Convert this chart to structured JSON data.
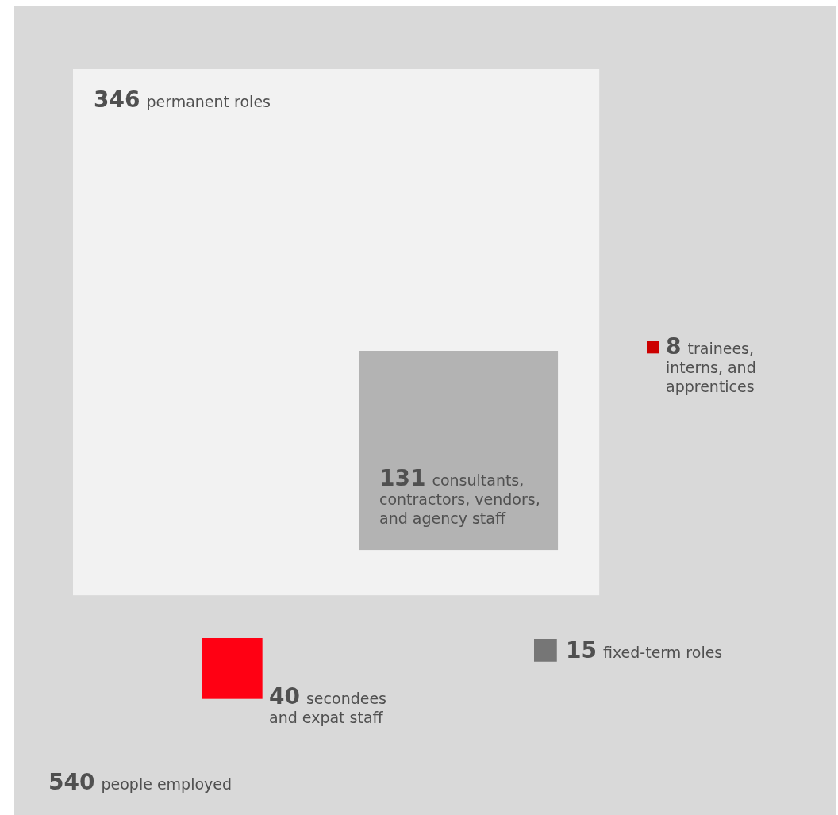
{
  "chart_data": {
    "type": "other",
    "categories": [
      "people employed",
      "permanent roles",
      "consultants, contractors, vendors, and agency staff",
      "trainees, interns, and apprentices",
      "fixed-term roles",
      "secondees and expat staff"
    ],
    "values": [
      540,
      346,
      131,
      8,
      15,
      40
    ],
    "colors": [
      "#d9d9d9",
      "#f2f2f2",
      "#b3b3b3",
      "#cc0000",
      "#767676",
      "#ff0013"
    ],
    "data_labels": true
  }
}
